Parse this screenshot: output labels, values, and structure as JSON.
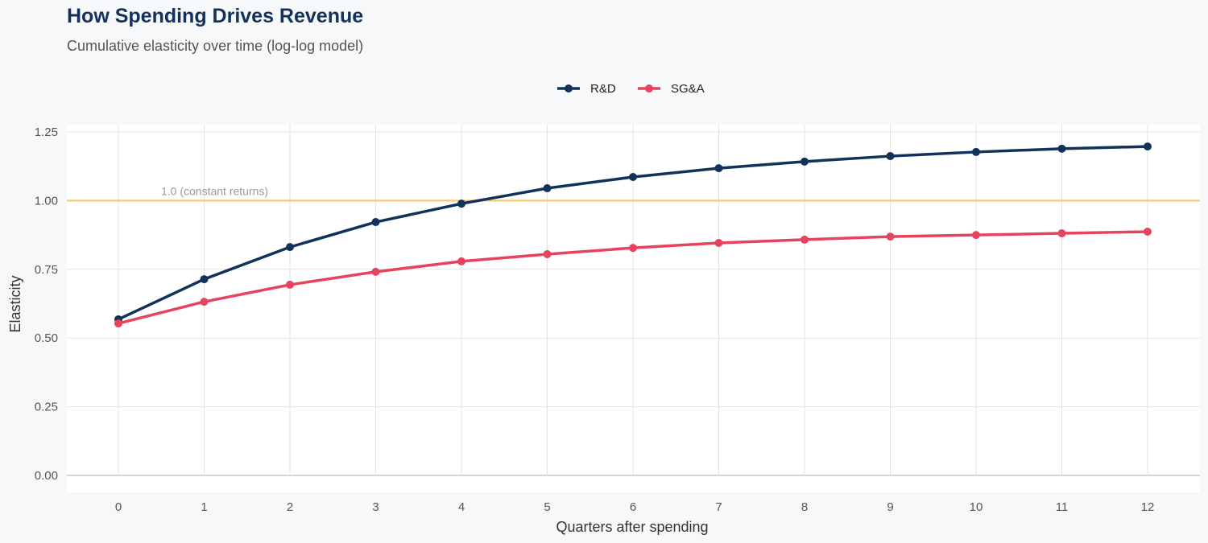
{
  "chart_data": {
    "type": "line",
    "title": "How Spending Drives Revenue",
    "subtitle": "Cumulative elasticity over time (log-log model)",
    "xlabel": "Quarters after spending",
    "ylabel": "Elasticity",
    "x": [
      0,
      1,
      2,
      3,
      4,
      5,
      6,
      7,
      8,
      9,
      10,
      11,
      12
    ],
    "xlim": [
      -0.6,
      12.6
    ],
    "ylim": [
      0,
      1.25
    ],
    "yticks": [
      "0.00",
      "0.25",
      "0.50",
      "0.75",
      "1.00",
      "1.25"
    ],
    "xticks": [
      "0",
      "1",
      "2",
      "3",
      "4",
      "5",
      "6",
      "7",
      "8",
      "9",
      "10",
      "11",
      "12"
    ],
    "grid": true,
    "legend_position": "top",
    "series": [
      {
        "name": "R&D",
        "color": "#13325b",
        "values": [
          0.568,
          0.714,
          0.831,
          0.922,
          0.989,
          1.045,
          1.086,
          1.118,
          1.142,
          1.162,
          1.177,
          1.189,
          1.197
        ]
      },
      {
        "name": "SG&A",
        "color": "#e8435e",
        "values": [
          0.553,
          0.632,
          0.694,
          0.741,
          0.779,
          0.805,
          0.828,
          0.846,
          0.858,
          0.869,
          0.875,
          0.881,
          0.887
        ]
      }
    ],
    "reference_line": {
      "y": 1.0,
      "label": "1.0 (constant returns)",
      "color": "#f5c75a"
    }
  }
}
